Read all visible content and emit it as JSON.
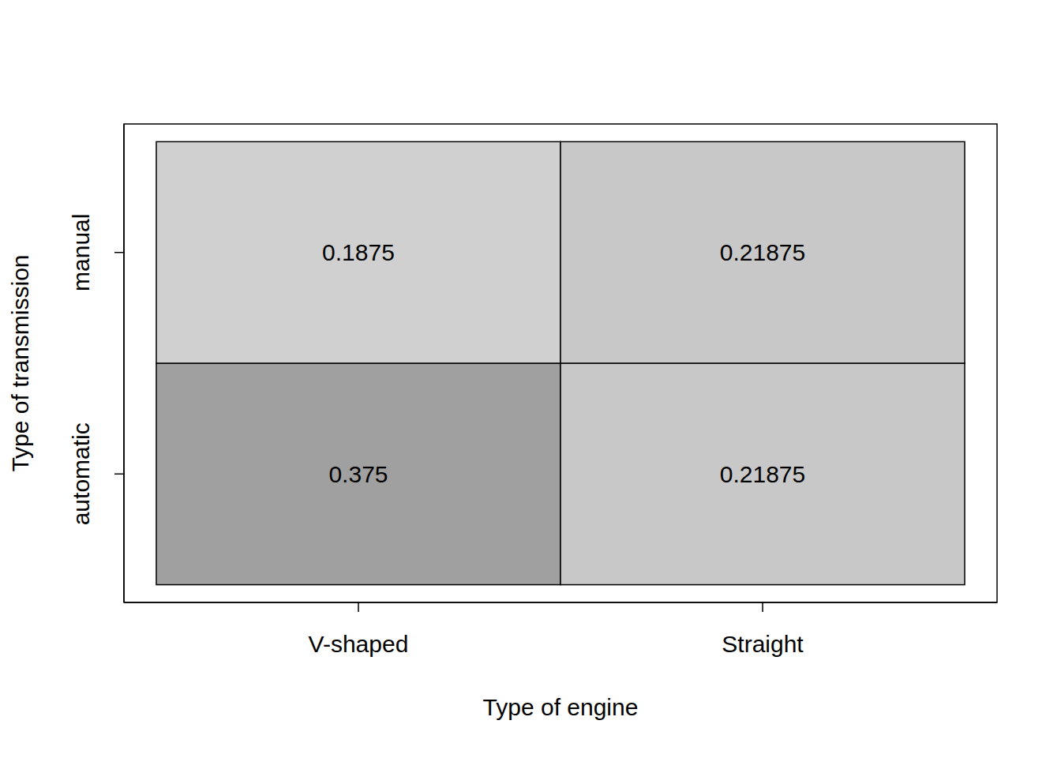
{
  "chart_data": {
    "type": "heatmap",
    "xlabel": "Type of engine",
    "ylabel": "Type of transmission",
    "x_categories": [
      "V-shaped",
      "Straight"
    ],
    "y_categories": [
      "automatic",
      "manual"
    ],
    "cells": [
      [
        0.375,
        0.21875
      ],
      [
        0.1875,
        0.21875
      ]
    ],
    "colors": [
      [
        "#a0a0a0",
        "#c8c8c8"
      ],
      [
        "#d0d0d0",
        "#c8c8c8"
      ]
    ],
    "data_labels": true
  }
}
